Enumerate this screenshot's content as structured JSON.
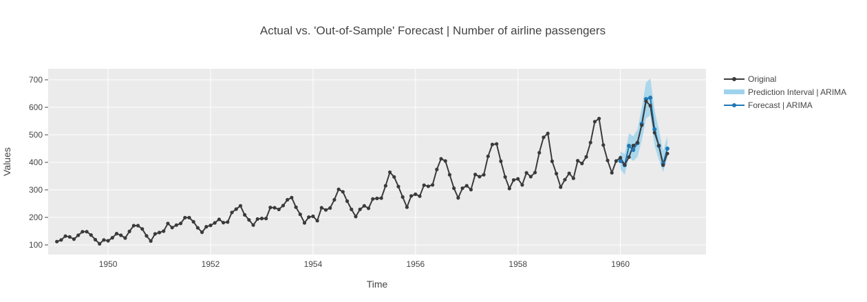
{
  "chart_data": {
    "type": "line",
    "title": "Actual vs. 'Out-of-Sample' Forecast | Number of airline passengers",
    "xlabel": "Time",
    "ylabel": "Values",
    "xlim": [
      1948.83,
      1961.67
    ],
    "ylim": [
      65,
      740
    ],
    "x_ticks": [
      1950,
      1952,
      1954,
      1956,
      1958,
      1960
    ],
    "x_tick_labels": [
      "1950",
      "1952",
      "1954",
      "1956",
      "1958",
      "1960"
    ],
    "y_ticks": [
      100,
      200,
      300,
      400,
      500,
      600,
      700
    ],
    "y_tick_labels": [
      "100",
      "200",
      "300",
      "400",
      "500",
      "600",
      "700"
    ],
    "legend": {
      "position": "top-right",
      "items": [
        "Original",
        "Prediction Interval | ARIMA",
        "Forecast | ARIMA"
      ]
    },
    "series": [
      {
        "name": "Original",
        "start_year": 1949,
        "step_years": 0.08333,
        "values": [
          112,
          118,
          132,
          129,
          121,
          135,
          148,
          148,
          136,
          119,
          104,
          118,
          115,
          126,
          141,
          135,
          125,
          149,
          170,
          170,
          158,
          133,
          114,
          140,
          145,
          150,
          178,
          163,
          172,
          178,
          199,
          199,
          184,
          162,
          146,
          166,
          171,
          180,
          193,
          181,
          183,
          218,
          230,
          242,
          209,
          191,
          172,
          194,
          196,
          196,
          236,
          235,
          229,
          243,
          264,
          272,
          237,
          211,
          180,
          201,
          204,
          188,
          235,
          227,
          234,
          264,
          302,
          293,
          259,
          229,
          203,
          229,
          242,
          233,
          267,
          269,
          270,
          315,
          364,
          347,
          312,
          274,
          237,
          278,
          284,
          277,
          317,
          313,
          318,
          374,
          413,
          405,
          355,
          306,
          271,
          306,
          315,
          301,
          356,
          348,
          355,
          422,
          465,
          467,
          404,
          347,
          305,
          336,
          340,
          318,
          362,
          348,
          363,
          435,
          491,
          505,
          404,
          359,
          310,
          337,
          360,
          342,
          406,
          396,
          420,
          472,
          548,
          559,
          463,
          407,
          362,
          405,
          417,
          391,
          419,
          461,
          472,
          535,
          622,
          606,
          508,
          461,
          390,
          432
        ]
      },
      {
        "name": "Forecast | ARIMA",
        "start_year": 1960,
        "step_years": 0.08333,
        "values": [
          405,
          390,
          460,
          445,
          470,
          540,
          630,
          635,
          520,
          460,
          395,
          450
        ]
      },
      {
        "name": "Prediction Interval | ARIMA",
        "start_year": 1960,
        "step_years": 0.08333,
        "lower": [
          375,
          355,
          420,
          405,
          420,
          480,
          560,
          570,
          460,
          410,
          365,
          415
        ],
        "upper": [
          440,
          430,
          505,
          495,
          520,
          600,
          690,
          705,
          590,
          520,
          440,
          495
        ]
      }
    ]
  },
  "colors": {
    "plot_bg": "#ebebeb",
    "grid": "#ffffff",
    "original": "#3a3a3a",
    "forecast": "#1f77b4",
    "interval": "#9fd3ec"
  }
}
